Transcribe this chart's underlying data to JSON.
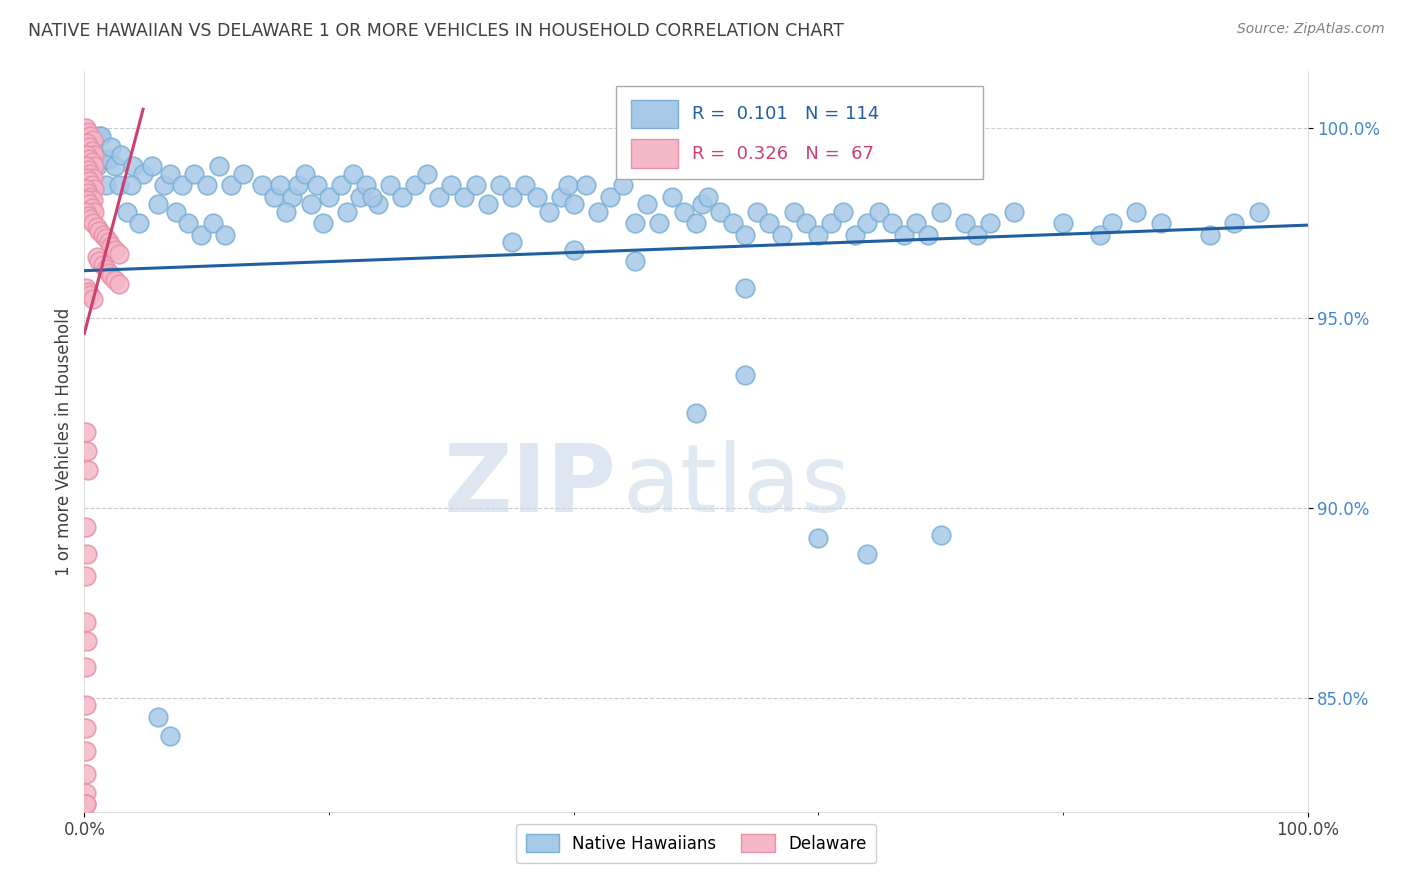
{
  "title": "NATIVE HAWAIIAN VS DELAWARE 1 OR MORE VEHICLES IN HOUSEHOLD CORRELATION CHART",
  "source_text": "Source: ZipAtlas.com",
  "ylabel": "1 or more Vehicles in Household",
  "watermark_zip": "ZIP",
  "watermark_atlas": "atlas",
  "xmin": 0.0,
  "xmax": 1.0,
  "ymin": 0.82,
  "ymax": 1.015,
  "ytick_values": [
    0.85,
    0.9,
    0.95,
    1.0
  ],
  "ytick_labels": [
    "85.0%",
    "90.0%",
    "95.0%",
    "100.0%"
  ],
  "blue_color": "#a8c8e8",
  "blue_edge_color": "#7ab0d4",
  "pink_color": "#f4b8c8",
  "pink_edge_color": "#e890a8",
  "blue_line_color": "#2060a0",
  "pink_line_color": "#cc4070",
  "ytick_color": "#4488cc",
  "title_color": "#404040",
  "source_color": "#808080",
  "ylabel_color": "#404040",
  "legend_text_blue_color": "#2060a0",
  "legend_text_pink_color": "#cc4070",
  "grid_color": "#cccccc",
  "background_color": "#ffffff",
  "blue_trend_x": [
    0.0,
    1.0
  ],
  "blue_trend_y": [
    0.9625,
    0.9745
  ],
  "pink_trend_x": [
    0.0,
    0.048
  ],
  "pink_trend_y": [
    0.946,
    1.005
  ],
  "blue_scatter": [
    [
      0.005,
      0.998
    ],
    [
      0.007,
      0.998
    ],
    [
      0.012,
      0.998
    ],
    [
      0.014,
      0.998
    ],
    [
      0.003,
      0.995
    ],
    [
      0.008,
      0.993
    ],
    [
      0.01,
      0.99
    ],
    [
      0.016,
      0.992
    ],
    [
      0.02,
      0.992
    ],
    [
      0.022,
      0.995
    ],
    [
      0.025,
      0.99
    ],
    [
      0.03,
      0.993
    ],
    [
      0.018,
      0.985
    ],
    [
      0.028,
      0.985
    ],
    [
      0.04,
      0.99
    ],
    [
      0.048,
      0.988
    ],
    [
      0.038,
      0.985
    ],
    [
      0.055,
      0.99
    ],
    [
      0.065,
      0.985
    ],
    [
      0.07,
      0.988
    ],
    [
      0.08,
      0.985
    ],
    [
      0.09,
      0.988
    ],
    [
      0.1,
      0.985
    ],
    [
      0.11,
      0.99
    ],
    [
      0.12,
      0.985
    ],
    [
      0.13,
      0.988
    ],
    [
      0.145,
      0.985
    ],
    [
      0.155,
      0.982
    ],
    [
      0.16,
      0.985
    ],
    [
      0.17,
      0.982
    ],
    [
      0.175,
      0.985
    ],
    [
      0.18,
      0.988
    ],
    [
      0.185,
      0.98
    ],
    [
      0.19,
      0.985
    ],
    [
      0.2,
      0.982
    ],
    [
      0.21,
      0.985
    ],
    [
      0.22,
      0.988
    ],
    [
      0.225,
      0.982
    ],
    [
      0.23,
      0.985
    ],
    [
      0.24,
      0.98
    ],
    [
      0.25,
      0.985
    ],
    [
      0.26,
      0.982
    ],
    [
      0.27,
      0.985
    ],
    [
      0.28,
      0.988
    ],
    [
      0.29,
      0.982
    ],
    [
      0.3,
      0.985
    ],
    [
      0.31,
      0.982
    ],
    [
      0.32,
      0.985
    ],
    [
      0.33,
      0.98
    ],
    [
      0.34,
      0.985
    ],
    [
      0.35,
      0.982
    ],
    [
      0.36,
      0.985
    ],
    [
      0.37,
      0.982
    ],
    [
      0.38,
      0.978
    ],
    [
      0.39,
      0.982
    ],
    [
      0.395,
      0.985
    ],
    [
      0.4,
      0.98
    ],
    [
      0.41,
      0.985
    ],
    [
      0.42,
      0.978
    ],
    [
      0.43,
      0.982
    ],
    [
      0.44,
      0.985
    ],
    [
      0.45,
      0.975
    ],
    [
      0.46,
      0.98
    ],
    [
      0.47,
      0.975
    ],
    [
      0.48,
      0.982
    ],
    [
      0.49,
      0.978
    ],
    [
      0.5,
      0.975
    ],
    [
      0.505,
      0.98
    ],
    [
      0.51,
      0.982
    ],
    [
      0.52,
      0.978
    ],
    [
      0.53,
      0.975
    ],
    [
      0.54,
      0.972
    ],
    [
      0.55,
      0.978
    ],
    [
      0.56,
      0.975
    ],
    [
      0.57,
      0.972
    ],
    [
      0.58,
      0.978
    ],
    [
      0.59,
      0.975
    ],
    [
      0.6,
      0.972
    ],
    [
      0.61,
      0.975
    ],
    [
      0.62,
      0.978
    ],
    [
      0.63,
      0.972
    ],
    [
      0.64,
      0.975
    ],
    [
      0.65,
      0.978
    ],
    [
      0.66,
      0.975
    ],
    [
      0.67,
      0.972
    ],
    [
      0.68,
      0.975
    ],
    [
      0.69,
      0.972
    ],
    [
      0.7,
      0.978
    ],
    [
      0.72,
      0.975
    ],
    [
      0.73,
      0.972
    ],
    [
      0.74,
      0.975
    ],
    [
      0.76,
      0.978
    ],
    [
      0.8,
      0.975
    ],
    [
      0.83,
      0.972
    ],
    [
      0.84,
      0.975
    ],
    [
      0.86,
      0.978
    ],
    [
      0.88,
      0.975
    ],
    [
      0.92,
      0.972
    ],
    [
      0.94,
      0.975
    ],
    [
      0.96,
      0.978
    ],
    [
      0.035,
      0.978
    ],
    [
      0.045,
      0.975
    ],
    [
      0.06,
      0.98
    ],
    [
      0.075,
      0.978
    ],
    [
      0.085,
      0.975
    ],
    [
      0.095,
      0.972
    ],
    [
      0.105,
      0.975
    ],
    [
      0.115,
      0.972
    ],
    [
      0.165,
      0.978
    ],
    [
      0.195,
      0.975
    ],
    [
      0.215,
      0.978
    ],
    [
      0.235,
      0.982
    ],
    [
      0.35,
      0.97
    ],
    [
      0.4,
      0.968
    ],
    [
      0.45,
      0.965
    ],
    [
      0.5,
      0.925
    ],
    [
      0.54,
      0.935
    ],
    [
      0.54,
      0.958
    ],
    [
      0.6,
      0.892
    ],
    [
      0.64,
      0.888
    ],
    [
      0.7,
      0.893
    ],
    [
      0.06,
      0.845
    ],
    [
      0.07,
      0.84
    ]
  ],
  "pink_scatter": [
    [
      0.001,
      1.0
    ],
    [
      0.003,
      0.999
    ],
    [
      0.005,
      0.998
    ],
    [
      0.007,
      0.997
    ],
    [
      0.002,
      0.996
    ],
    [
      0.004,
      0.995
    ],
    [
      0.006,
      0.994
    ],
    [
      0.008,
      0.993
    ],
    [
      0.002,
      0.993
    ],
    [
      0.004,
      0.992
    ],
    [
      0.006,
      0.991
    ],
    [
      0.008,
      0.99
    ],
    [
      0.001,
      0.99
    ],
    [
      0.003,
      0.989
    ],
    [
      0.005,
      0.988
    ],
    [
      0.007,
      0.987
    ],
    [
      0.002,
      0.987
    ],
    [
      0.004,
      0.986
    ],
    [
      0.006,
      0.985
    ],
    [
      0.008,
      0.984
    ],
    [
      0.001,
      0.984
    ],
    [
      0.003,
      0.983
    ],
    [
      0.005,
      0.982
    ],
    [
      0.007,
      0.981
    ],
    [
      0.002,
      0.981
    ],
    [
      0.004,
      0.98
    ],
    [
      0.006,
      0.979
    ],
    [
      0.008,
      0.978
    ],
    [
      0.001,
      0.978
    ],
    [
      0.003,
      0.977
    ],
    [
      0.005,
      0.976
    ],
    [
      0.007,
      0.975
    ],
    [
      0.01,
      0.974
    ],
    [
      0.012,
      0.973
    ],
    [
      0.015,
      0.972
    ],
    [
      0.018,
      0.971
    ],
    [
      0.02,
      0.97
    ],
    [
      0.022,
      0.969
    ],
    [
      0.025,
      0.968
    ],
    [
      0.028,
      0.967
    ],
    [
      0.01,
      0.966
    ],
    [
      0.012,
      0.965
    ],
    [
      0.015,
      0.964
    ],
    [
      0.018,
      0.963
    ],
    [
      0.02,
      0.962
    ],
    [
      0.022,
      0.961
    ],
    [
      0.025,
      0.96
    ],
    [
      0.028,
      0.959
    ],
    [
      0.001,
      0.958
    ],
    [
      0.003,
      0.957
    ],
    [
      0.005,
      0.956
    ],
    [
      0.007,
      0.955
    ],
    [
      0.001,
      0.92
    ],
    [
      0.002,
      0.915
    ],
    [
      0.003,
      0.91
    ],
    [
      0.001,
      0.895
    ],
    [
      0.002,
      0.888
    ],
    [
      0.001,
      0.882
    ],
    [
      0.001,
      0.87
    ],
    [
      0.002,
      0.865
    ],
    [
      0.001,
      0.858
    ],
    [
      0.001,
      0.848
    ],
    [
      0.001,
      0.842
    ],
    [
      0.001,
      0.836
    ],
    [
      0.001,
      0.83
    ],
    [
      0.001,
      0.825
    ],
    [
      0.001,
      0.822
    ],
    [
      0.001,
      0.822
    ]
  ]
}
